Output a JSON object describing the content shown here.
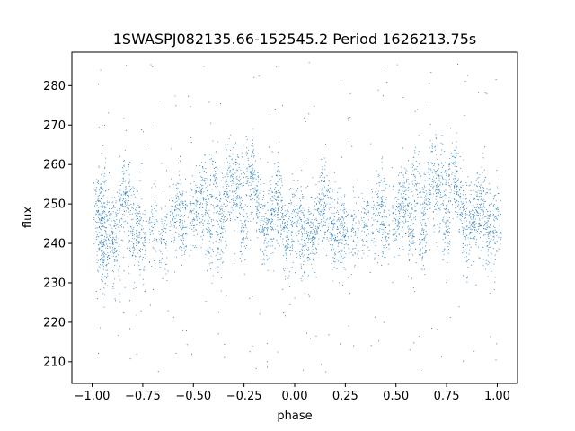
{
  "chart_data": {
    "type": "scatter",
    "title": "1SWASPJ082135.66-152545.2 Period 1626213.75s",
    "xlabel": "phase",
    "ylabel": "flux",
    "xlim": [
      -1.1,
      1.1
    ],
    "ylim": [
      204.5,
      288.5
    ],
    "xticks": [
      -1.0,
      -0.75,
      -0.5,
      -0.25,
      0.0,
      0.25,
      0.5,
      0.75,
      1.0
    ],
    "xtick_labels": [
      "−1.00",
      "−0.75",
      "−0.50",
      "−0.25",
      "0.00",
      "0.25",
      "0.50",
      "0.75",
      "1.00"
    ],
    "yticks": [
      210,
      220,
      230,
      240,
      250,
      260,
      270,
      280
    ],
    "ytick_labels": [
      "210",
      "220",
      "230",
      "240",
      "250",
      "260",
      "270",
      "280"
    ],
    "grid": false,
    "marker_color": "#1f77b4",
    "series": [
      {
        "x_range": [
          -1.0,
          1.0
        ],
        "description_of_shape": "phase-folded light curve, mirrored at phase 0 and 1",
        "points": [
          [
            -0.97,
            248
          ],
          [
            -0.96,
            240
          ],
          [
            -0.95,
            252
          ],
          [
            -0.94,
            236
          ],
          [
            -0.93,
            244
          ],
          [
            -0.9,
            243
          ],
          [
            -0.88,
            238
          ],
          [
            -0.85,
            250
          ],
          [
            -0.83,
            253
          ],
          [
            -0.8,
            242
          ],
          [
            -0.78,
            246
          ],
          [
            -0.75,
            240
          ],
          [
            -0.7,
            244
          ],
          [
            -0.65,
            241
          ],
          [
            -0.6,
            247
          ],
          [
            -0.57,
            250
          ],
          [
            -0.55,
            244
          ],
          [
            -0.5,
            246
          ],
          [
            -0.47,
            249
          ],
          [
            -0.45,
            251
          ],
          [
            -0.42,
            243
          ],
          [
            -0.4,
            255
          ],
          [
            -0.37,
            241
          ],
          [
            -0.35,
            250
          ],
          [
            -0.32,
            258
          ],
          [
            -0.3,
            252
          ],
          [
            -0.27,
            255
          ],
          [
            -0.25,
            244
          ],
          [
            -0.22,
            258
          ],
          [
            -0.2,
            253
          ],
          [
            -0.17,
            249
          ],
          [
            -0.15,
            242
          ],
          [
            -0.12,
            245
          ],
          [
            -0.1,
            248
          ],
          [
            -0.08,
            250
          ],
          [
            -0.05,
            244
          ],
          [
            -0.03,
            241
          ],
          [
            0.0,
            247
          ],
          [
            0.03,
            246
          ],
          [
            0.05,
            240
          ],
          [
            0.08,
            244
          ],
          [
            0.1,
            243
          ],
          [
            0.13,
            248
          ],
          [
            0.15,
            252
          ],
          [
            0.18,
            245
          ],
          [
            0.2,
            241
          ],
          [
            0.23,
            244
          ],
          [
            0.25,
            242
          ],
          [
            0.3,
            243
          ],
          [
            0.35,
            245
          ],
          [
            0.4,
            246
          ],
          [
            0.43,
            250
          ],
          [
            0.45,
            244
          ],
          [
            0.5,
            246
          ],
          [
            0.53,
            249
          ],
          [
            0.55,
            251
          ],
          [
            0.58,
            243
          ],
          [
            0.6,
            255
          ],
          [
            0.63,
            241
          ],
          [
            0.65,
            250
          ],
          [
            0.68,
            258
          ],
          [
            0.7,
            252
          ],
          [
            0.73,
            255
          ],
          [
            0.75,
            244
          ],
          [
            0.78,
            258
          ],
          [
            0.8,
            253
          ],
          [
            0.83,
            249
          ],
          [
            0.85,
            242
          ],
          [
            0.88,
            245
          ],
          [
            0.9,
            248
          ],
          [
            0.92,
            250
          ],
          [
            0.95,
            244
          ],
          [
            0.97,
            241
          ],
          [
            1.0,
            247
          ]
        ]
      }
    ]
  }
}
